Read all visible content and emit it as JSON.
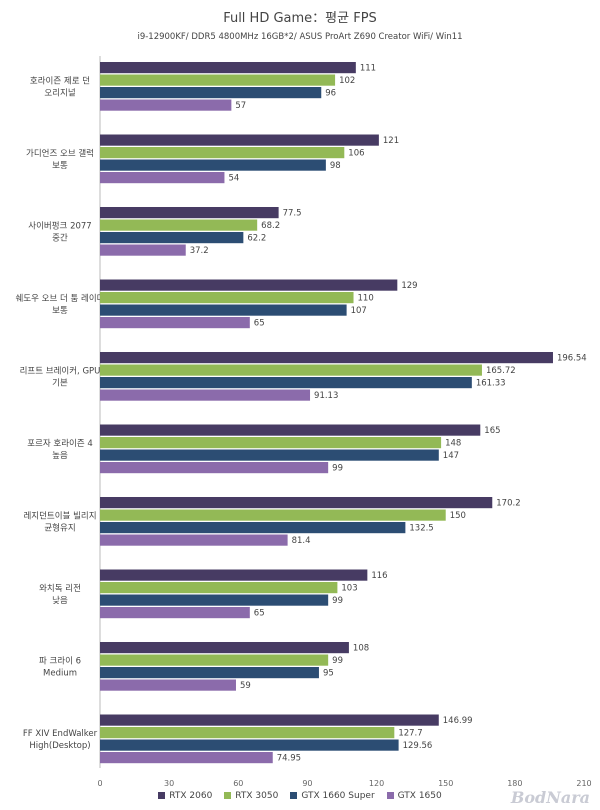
{
  "chart_data": {
    "type": "bar",
    "orientation": "horizontal",
    "title": "Full HD Game：평균 FPS",
    "subtitle": "i9-12900KF/ DDR5 4800MHz 16GB*2/ ASUS ProArt Z690 Creator WiFi/ Win11",
    "categories": [
      [
        "호라이즌 제로 던",
        "오리지널"
      ],
      [
        "가디언즈 오브 갤럭",
        "보통"
      ],
      [
        "사이버펑크 2077",
        "중간"
      ],
      [
        "쉐도우 오브 더 툼 레이더",
        "보통"
      ],
      [
        "리프트 브레이커, GPU",
        "기본"
      ],
      [
        "포르자 호라이즌 4",
        "높음"
      ],
      [
        "레지던트이블 빌리지",
        "균형유지"
      ],
      [
        "와치독 리전",
        "낮음"
      ],
      [
        "파 크라이 6",
        "Medium"
      ],
      [
        "FF XIV EndWalker",
        "High(Desktop)"
      ]
    ],
    "series": [
      {
        "name": "RTX 2060",
        "color": "#473b63",
        "values": [
          "111",
          "121",
          "77.5",
          "129",
          "196.54",
          "165",
          "170.2",
          "116",
          "108",
          "146.99"
        ]
      },
      {
        "name": "RTX 3050",
        "color": "#93b956",
        "values": [
          "102",
          "106",
          "68.2",
          "110",
          "165.72",
          "148",
          "150",
          "103",
          "99",
          "127.7"
        ]
      },
      {
        "name": "GTX 1660 Super",
        "color": "#2c4d73",
        "values": [
          "96",
          "98",
          "62.2",
          "107",
          "161.33",
          "147",
          "132.5",
          "99",
          "95",
          "129.56"
        ]
      },
      {
        "name": "GTX 1650",
        "color": "#8b6bab",
        "values": [
          "57",
          "54",
          "37.2",
          "65",
          "91.13",
          "99",
          "81.4",
          "65",
          "59",
          "74.95"
        ]
      }
    ],
    "xlim": [
      0,
      210
    ],
    "xticks": [
      "0",
      "30",
      "60",
      "90",
      "120",
      "150",
      "180",
      "210"
    ],
    "grid": false,
    "legend": "bottom"
  },
  "watermark": "BodNara"
}
